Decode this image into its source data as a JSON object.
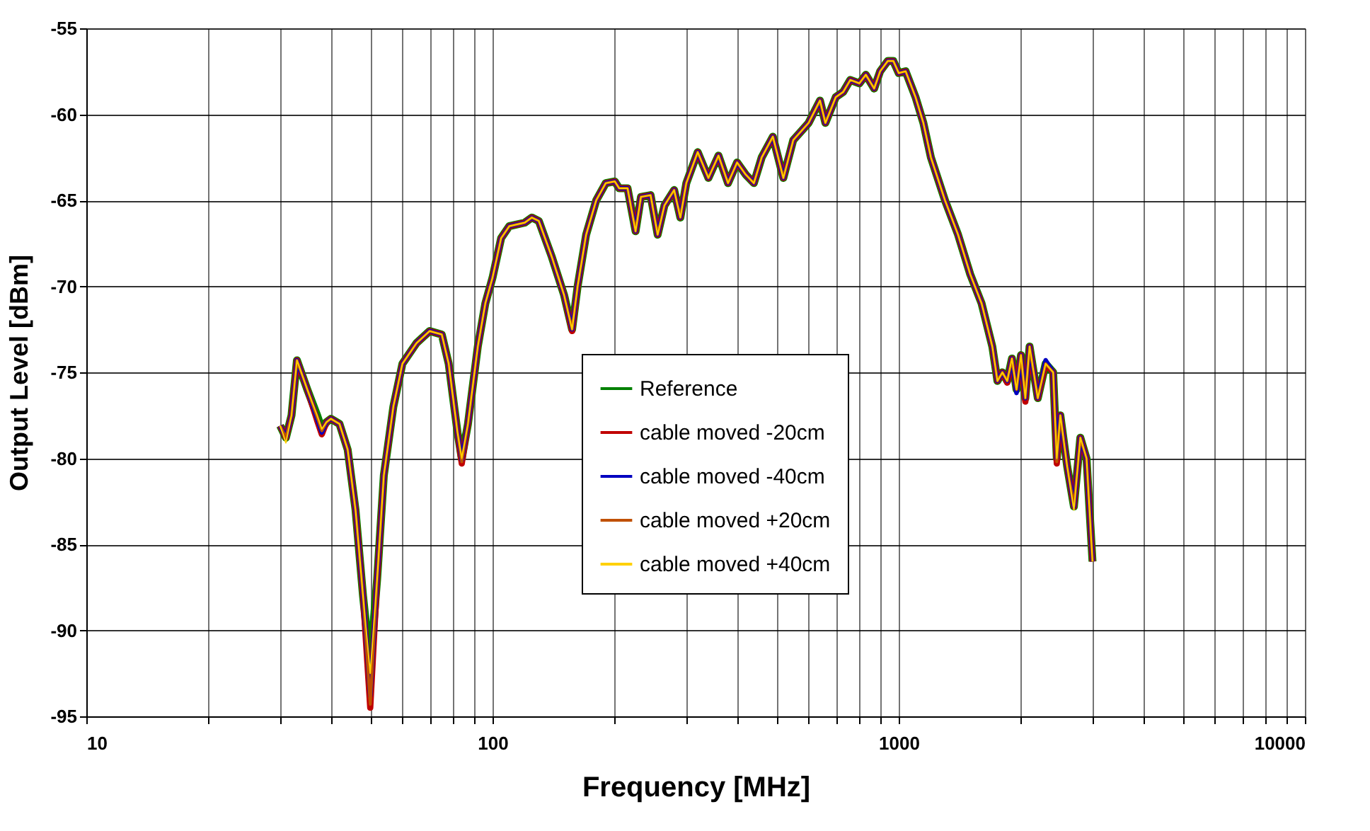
{
  "chart_data": {
    "type": "line",
    "xlabel": "Frequency [MHz]",
    "ylabel": "Output Level [dBm]",
    "x": [
      30,
      31,
      32,
      33,
      35,
      37,
      38,
      39,
      40,
      42,
      44,
      46,
      48,
      50,
      52,
      54,
      57,
      60,
      65,
      70,
      75,
      78,
      82,
      84,
      87,
      92,
      96,
      100,
      105,
      110,
      120,
      125,
      130,
      140,
      150,
      157,
      162,
      170,
      180,
      190,
      200,
      205,
      215,
      225,
      232,
      245,
      255,
      265,
      280,
      290,
      300,
      320,
      340,
      360,
      380,
      400,
      420,
      440,
      460,
      490,
      520,
      550,
      600,
      640,
      660,
      700,
      730,
      760,
      800,
      830,
      870,
      900,
      940,
      970,
      1000,
      1040,
      1100,
      1150,
      1200,
      1300,
      1400,
      1500,
      1600,
      1700,
      1750,
      1800,
      1850,
      1900,
      1950,
      2000,
      2050,
      2100,
      2200,
      2300,
      2400,
      2450,
      2500,
      2600,
      2700,
      2800,
      2900,
      3000
    ],
    "series": [
      {
        "name": "Reference",
        "color": "#008000",
        "values": [
          -78.1,
          -78.8,
          -77.5,
          -74.3,
          -76,
          -77.5,
          -78.3,
          -77.9,
          -77.7,
          -78,
          -79.5,
          -83,
          -88,
          -92,
          -87,
          -81,
          -77,
          -74.5,
          -73.3,
          -72.6,
          -72.8,
          -74.5,
          -78.5,
          -80,
          -78,
          -73.5,
          -71,
          -69.5,
          -67.2,
          -66.5,
          -66.3,
          -66,
          -66.2,
          -68.3,
          -70.5,
          -72.5,
          -70,
          -67,
          -65,
          -64,
          -63.9,
          -64.3,
          -64.3,
          -66.8,
          -64.8,
          -64.7,
          -67,
          -65.3,
          -64.4,
          -66,
          -64,
          -62.2,
          -63.7,
          -62.4,
          -64,
          -62.8,
          -63.5,
          -64,
          -62.5,
          -61.3,
          -63.7,
          -61.5,
          -60.5,
          -59.2,
          -60.5,
          -59,
          -58.7,
          -58,
          -58.2,
          -57.7,
          -58.5,
          -57.5,
          -56.9,
          -56.9,
          -57.6,
          -57.5,
          -59,
          -60.5,
          -62.5,
          -65,
          -67,
          -69.3,
          -71,
          -73.5,
          -75.5,
          -75,
          -75.5,
          -74.2,
          -76,
          -74,
          -76.5,
          -73.5,
          -76.5,
          -74.5,
          -75,
          -80,
          -77.5,
          -80.5,
          -82.8,
          -78.8,
          -80,
          -86
        ]
      },
      {
        "name": "cable moved -20cm",
        "color": "#c00000",
        "values": [
          -78.1,
          -78.8,
          -77.5,
          -74.3,
          -76,
          -77.8,
          -78.6,
          -77.9,
          -77.7,
          -78,
          -79.5,
          -83,
          -88,
          -94.5,
          -87,
          -81,
          -77,
          -74.5,
          -73.3,
          -72.6,
          -72.8,
          -74.5,
          -78.5,
          -80.3,
          -78,
          -73.5,
          -71,
          -69.5,
          -67.2,
          -66.5,
          -66.3,
          -66,
          -66.2,
          -68.3,
          -70.5,
          -72.6,
          -70,
          -67,
          -65,
          -64,
          -63.9,
          -64.3,
          -64.3,
          -66.8,
          -64.8,
          -64.7,
          -67,
          -65.3,
          -64.4,
          -66,
          -64,
          -62.2,
          -63.7,
          -62.4,
          -64,
          -62.8,
          -63.5,
          -64,
          -62.5,
          -61.3,
          -63.7,
          -61.5,
          -60.5,
          -59.2,
          -60.5,
          -59,
          -58.7,
          -58,
          -58.2,
          -57.7,
          -58.5,
          -57.5,
          -56.9,
          -56.9,
          -57.6,
          -57.5,
          -59,
          -60.5,
          -62.5,
          -65,
          -67,
          -69.3,
          -71,
          -73.5,
          -75.5,
          -75,
          -75.6,
          -74.2,
          -76,
          -74,
          -76.7,
          -73.5,
          -76.5,
          -74.5,
          -75,
          -80.3,
          -77.5,
          -80.5,
          -82.8,
          -78.8,
          -80,
          -86
        ]
      },
      {
        "name": "cable moved -40cm",
        "color": "#0000c0",
        "values": [
          -78.1,
          -78.8,
          -77.5,
          -74.3,
          -76,
          -77.7,
          -78.5,
          -77.9,
          -77.7,
          -78,
          -79.5,
          -83,
          -88,
          -93.8,
          -87,
          -81,
          -77,
          -74.5,
          -73.3,
          -72.6,
          -72.8,
          -74.5,
          -78.5,
          -80.1,
          -78,
          -73.5,
          -71,
          -69.5,
          -67.2,
          -66.5,
          -66.3,
          -66,
          -66.2,
          -68.3,
          -70.5,
          -72.5,
          -70,
          -67,
          -65,
          -64,
          -63.9,
          -64.3,
          -64.3,
          -66.8,
          -64.8,
          -64.7,
          -67,
          -65.3,
          -64.4,
          -66,
          -64,
          -62.2,
          -63.7,
          -62.4,
          -64,
          -62.8,
          -63.5,
          -64,
          -62.5,
          -61.3,
          -63.7,
          -61.5,
          -60.5,
          -59.2,
          -60.5,
          -59,
          -58.7,
          -58,
          -58.2,
          -57.7,
          -58.5,
          -57.5,
          -56.9,
          -56.9,
          -57.6,
          -57.5,
          -59,
          -60.5,
          -62.5,
          -65,
          -67,
          -69.3,
          -71,
          -73.5,
          -75.5,
          -75,
          -75.5,
          -74.2,
          -76.2,
          -74,
          -76.5,
          -73.5,
          -76.5,
          -74.3,
          -75,
          -80,
          -77.5,
          -80.5,
          -82.8,
          -78.8,
          -80,
          -86
        ]
      },
      {
        "name": "cable moved +20cm",
        "color": "#c05000",
        "values": [
          -78.1,
          -78.8,
          -77.5,
          -74.3,
          -76,
          -77.6,
          -78.4,
          -77.9,
          -77.7,
          -78,
          -79.5,
          -83,
          -88,
          -94.3,
          -87,
          -81,
          -77,
          -74.5,
          -73.3,
          -72.6,
          -72.8,
          -74.5,
          -78.5,
          -80.2,
          -78,
          -73.5,
          -71,
          -69.5,
          -67.2,
          -66.5,
          -66.3,
          -66,
          -66.2,
          -68.3,
          -70.5,
          -72.5,
          -70,
          -67,
          -65,
          -64,
          -63.9,
          -64.3,
          -64.3,
          -66.8,
          -64.8,
          -64.7,
          -67,
          -65.3,
          -64.4,
          -66,
          -64,
          -62.2,
          -63.7,
          -62.4,
          -64,
          -62.8,
          -63.5,
          -64,
          -62.5,
          -61.3,
          -63.7,
          -61.5,
          -60.5,
          -59.2,
          -60.5,
          -59,
          -58.7,
          -58,
          -58.2,
          -57.7,
          -58.5,
          -57.5,
          -56.9,
          -56.9,
          -57.6,
          -57.5,
          -59,
          -60.5,
          -62.5,
          -65,
          -67,
          -69.3,
          -71,
          -73.5,
          -75.5,
          -75,
          -75.5,
          -74.2,
          -76,
          -74,
          -76.5,
          -73.5,
          -76.5,
          -74.5,
          -75,
          -80.2,
          -77.5,
          -80.5,
          -82.8,
          -78.8,
          -80,
          -86
        ]
      },
      {
        "name": "cable moved +40cm",
        "color": "#ffd000",
        "values": [
          -78.1,
          -79.1,
          -77.5,
          -74.3,
          -76,
          -77.5,
          -78.3,
          -77.9,
          -77.7,
          -78,
          -79.5,
          -83,
          -88,
          -92.5,
          -87,
          -81,
          -77,
          -74.5,
          -73.3,
          -72.6,
          -72.8,
          -74.5,
          -78.5,
          -80,
          -78,
          -73.5,
          -71,
          -69.5,
          -67.2,
          -66.5,
          -66.3,
          -66,
          -66.2,
          -68.3,
          -70.5,
          -72.5,
          -70,
          -67,
          -65,
          -64,
          -63.9,
          -64.3,
          -64.3,
          -66.8,
          -64.8,
          -64.7,
          -67,
          -65.3,
          -64.4,
          -66,
          -64,
          -62.2,
          -63.7,
          -62.4,
          -64,
          -62.8,
          -63.5,
          -64,
          -62.5,
          -61.3,
          -63.7,
          -61.5,
          -60.5,
          -59.2,
          -60.5,
          -59,
          -58.7,
          -58,
          -58.2,
          -57.7,
          -58.5,
          -57.5,
          -56.9,
          -56.9,
          -57.6,
          -57.5,
          -59,
          -60.5,
          -62.5,
          -65,
          -67,
          -69.3,
          -71,
          -73.5,
          -75.5,
          -75,
          -75.5,
          -74.2,
          -76,
          -74,
          -76.5,
          -73.5,
          -76.5,
          -74.5,
          -75,
          -80,
          -77.5,
          -80.5,
          -83,
          -78.8,
          -80,
          -86
        ]
      }
    ],
    "xlim": [
      10,
      10000
    ],
    "ylim": [
      -95,
      -55
    ],
    "log": "x",
    "xticks": [
      10,
      {
        "value": 20,
        "label": null
      },
      {
        "value": 30,
        "label": null
      },
      {
        "value": 40,
        "label": null
      },
      {
        "value": 50,
        "label": null
      },
      {
        "value": 60,
        "label": null
      },
      {
        "value": 70,
        "label": null
      },
      {
        "value": 80,
        "label": null
      },
      {
        "value": 90,
        "label": null
      },
      100,
      {
        "value": 200,
        "label": null
      },
      {
        "value": 300,
        "label": null
      },
      {
        "value": 400,
        "label": null
      },
      {
        "value": 500,
        "label": null
      },
      {
        "value": 600,
        "label": null
      },
      {
        "value": 700,
        "label": null
      },
      {
        "value": 800,
        "label": null
      },
      {
        "value": 900,
        "label": null
      },
      1000,
      {
        "value": 2000,
        "label": null
      },
      {
        "value": 3000,
        "label": null
      },
      {
        "value": 4000,
        "label": null
      },
      {
        "value": 5000,
        "label": null
      },
      {
        "value": 6000,
        "label": null
      },
      {
        "value": 7000,
        "label": null
      },
      {
        "value": 8000,
        "label": null
      },
      {
        "value": 9000,
        "label": null
      },
      10000
    ],
    "yticks": [
      -95,
      -90,
      -85,
      -80,
      -75,
      -70,
      -65,
      -60,
      -55
    ],
    "grid": true,
    "legend": "bottom",
    "marker": "none",
    "line_style": "solid"
  }
}
